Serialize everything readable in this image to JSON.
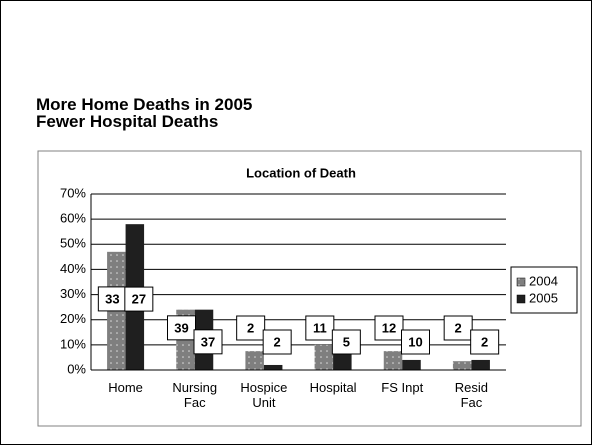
{
  "header": {
    "title_lines": [
      "More Home Deaths in 2005",
      "Fewer Hospital Deaths"
    ]
  },
  "chart_data": {
    "type": "bar",
    "title": "Location of Death",
    "categories": [
      "Home",
      "Nursing Fac",
      "Hospice Unit",
      "Hospital",
      "FS Inpt",
      "Resid Fac"
    ],
    "series": [
      {
        "name": "2004",
        "color": "#7f7f7f",
        "values": [
          47,
          24,
          7.5,
          10,
          7.5,
          3.5
        ],
        "counts": [
          33,
          39,
          2,
          11,
          12,
          2
        ]
      },
      {
        "name": "2005",
        "color": "#1f1f1f",
        "values": [
          58,
          24,
          2,
          7.5,
          4,
          4
        ],
        "counts": [
          27,
          37,
          2,
          5,
          10,
          2
        ]
      }
    ],
    "ylim": [
      0,
      70
    ],
    "yticks": [
      {
        "value": 0,
        "label": "0%"
      },
      {
        "value": 10,
        "label": "10%"
      },
      {
        "value": 20,
        "label": "20%"
      },
      {
        "value": 30,
        "label": "30%"
      },
      {
        "value": 40,
        "label": "40%"
      },
      {
        "value": 50,
        "label": "50%"
      },
      {
        "value": 60,
        "label": "60%"
      },
      {
        "value": 70,
        "label": "70%"
      }
    ],
    "grid": true,
    "legend": "right"
  }
}
